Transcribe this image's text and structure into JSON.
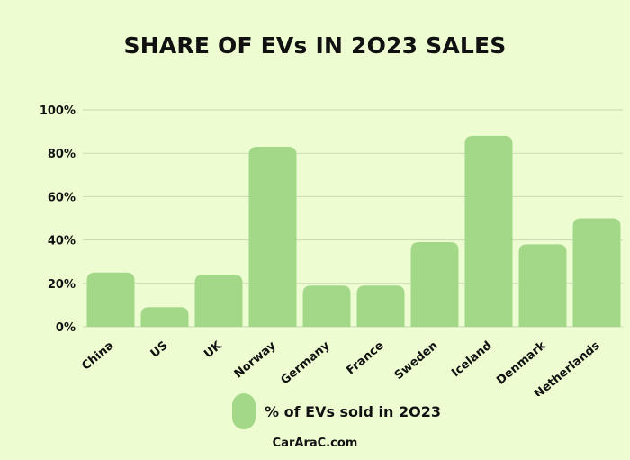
{
  "chart_data": {
    "type": "bar",
    "title": "SHARE OF EVs IN 2O23 SALES",
    "categories": [
      "China",
      "US",
      "UK",
      "Norway",
      "Germany",
      "France",
      "Sweden",
      "Iceland",
      "Denmark",
      "Netherlands"
    ],
    "series": [
      {
        "name": "% of EVs sold in 2O23",
        "values": [
          25,
          9,
          24,
          83,
          19,
          19,
          39,
          88,
          38,
          50
        ]
      }
    ],
    "ylim": [
      0,
      100
    ],
    "yticks": [
      "0%",
      "20%",
      "40%",
      "60%",
      "80%",
      "100%"
    ],
    "ytick_values": [
      0,
      20,
      40,
      60,
      80,
      100
    ],
    "bar_color": "#a2d887",
    "grid": true,
    "legend_position": "bottom"
  },
  "footer": "CarAraC.com"
}
